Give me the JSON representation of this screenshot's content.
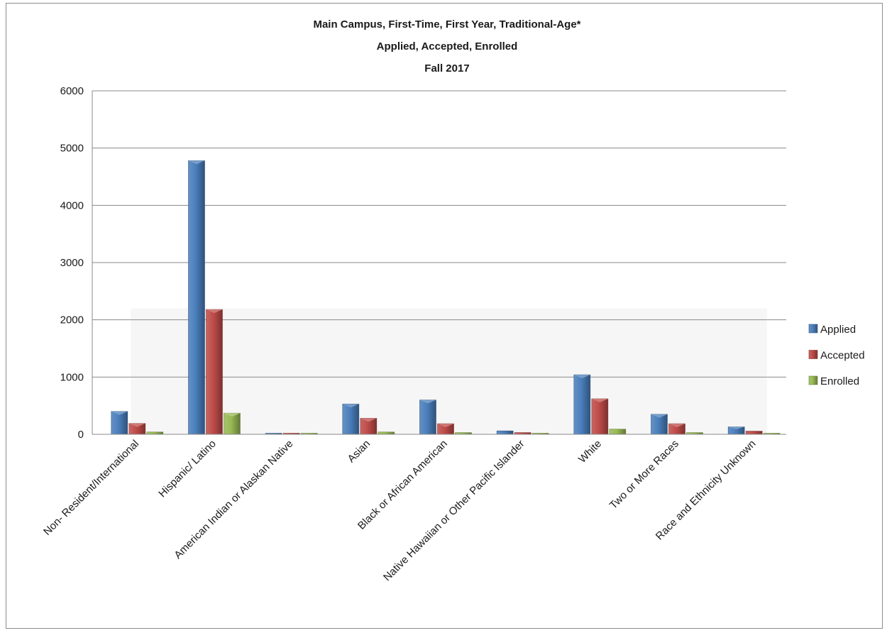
{
  "chart_data": {
    "type": "bar",
    "title": [
      "Main Campus, First-Time, First Year, Traditional-Age*",
      "Applied, Accepted, Enrolled",
      "Fall 2017"
    ],
    "categories": [
      "Non- Resident/International",
      "Hispanic/ Latino",
      "American Indian or Alaskan Native",
      "Asian",
      "Black or African American",
      "Native Hawaiian or Other Pacific Islander",
      "White",
      "Two or More Races",
      "Race and Ethnicity Unknown"
    ],
    "series": [
      {
        "name": "Applied",
        "color": "#4a7ebb",
        "values": [
          400,
          4780,
          12,
          530,
          600,
          60,
          1040,
          350,
          130
        ]
      },
      {
        "name": "Accepted",
        "color": "#be4b48",
        "values": [
          190,
          2180,
          6,
          280,
          185,
          30,
          620,
          185,
          55
        ]
      },
      {
        "name": "Enrolled",
        "color": "#98b954",
        "values": [
          40,
          370,
          2,
          40,
          30,
          5,
          90,
          30,
          10
        ]
      }
    ],
    "ylim": [
      0,
      6000
    ],
    "yticks": [
      0,
      1000,
      2000,
      3000,
      4000,
      5000,
      6000
    ],
    "grid": true,
    "legend": "right",
    "xlabel": "",
    "ylabel": ""
  }
}
